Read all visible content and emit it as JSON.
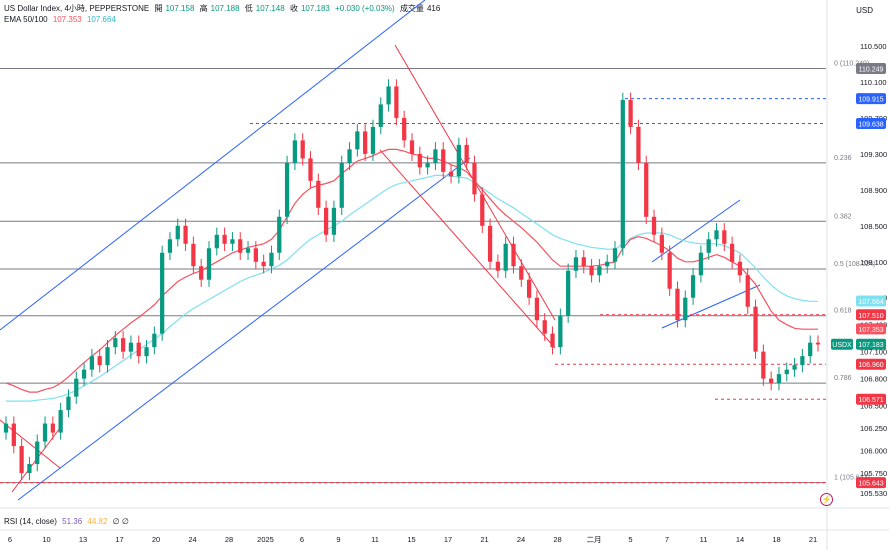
{
  "header": {
    "title": "US Dollar Index, 4小時, PEPPERSTONE",
    "open_label": "開",
    "open": "107.158",
    "high_label": "高",
    "high": "107.188",
    "low_label": "低",
    "low": "107.148",
    "close_label": "收",
    "close": "107.183",
    "change": "+0.030 (+0.03%)",
    "volume_label": "成交量",
    "volume": "416",
    "ema_label": "EMA 50/100",
    "ema50": "107.353",
    "ema100": "107.664"
  },
  "axis": {
    "currency": "USD"
  },
  "rsi": {
    "label": "RSI (14, close)",
    "value1": "51.36",
    "value2": "44.82",
    "extra": "∅ ∅"
  },
  "colors": {
    "up": "#089981",
    "down": "#f23645",
    "channel": "#2962ff",
    "ema50": "#f7525f",
    "ema100": "#7fe0f0",
    "level": "#787b86"
  },
  "chart_data": {
    "type": "candlestick",
    "y_ticks": [
      "110.500",
      "110.100",
      "109.700",
      "109.300",
      "108.900",
      "108.500",
      "108.100",
      "107.700",
      "107.400",
      "107.100",
      "106.800",
      "106.500",
      "106.250",
      "106.000",
      "105.750",
      "105.530"
    ],
    "ylim": [
      105.45,
      110.7
    ],
    "x_ticks": [
      "6",
      "10",
      "13",
      "17",
      "20",
      "24",
      "28",
      "2025",
      "6",
      "9",
      "11",
      "15",
      "17",
      "21",
      "24",
      "28",
      "二月",
      "5",
      "7",
      "11",
      "14",
      "18",
      "21"
    ],
    "fib_levels": [
      {
        "label": "0 (110.249)",
        "value": 110.249
      },
      {
        "label": "0.236",
        "value": 109.2
      },
      {
        "label": "0.382",
        "value": 108.55
      },
      {
        "label": "0.5 (108.024)",
        "value": 108.02
      },
      {
        "label": "0.618",
        "value": 107.5
      },
      {
        "label": "0.786",
        "value": 106.75
      },
      {
        "label": "1 (105.643)",
        "value": 105.643
      }
    ],
    "price_labels": [
      {
        "text": "110.249",
        "value": 110.249,
        "color": "#787b86"
      },
      {
        "text": "109.915",
        "value": 109.915,
        "color": "#2962ff"
      },
      {
        "text": "109.638",
        "value": 109.638,
        "color": "#2962ff"
      },
      {
        "text": "107.664",
        "value": 107.664,
        "color": "#7fe0f0"
      },
      {
        "text": "107.510",
        "value": 107.51,
        "color": "#f23645"
      },
      {
        "text": "107.353",
        "value": 107.353,
        "color": "#f7525f"
      },
      {
        "text": "USDX",
        "value": 107.183,
        "color": "#089981"
      },
      {
        "text": "107.183",
        "value": 107.183,
        "color": "#089981"
      },
      {
        "text": "106.960",
        "value": 106.96,
        "color": "#f23645"
      },
      {
        "text": "106.571",
        "value": 106.571,
        "color": "#f23645"
      },
      {
        "text": "105.643",
        "value": 105.643,
        "color": "#f23645"
      }
    ],
    "close_series": [
      106.3,
      106.05,
      105.75,
      105.85,
      106.1,
      106.3,
      106.2,
      106.45,
      106.6,
      106.8,
      106.9,
      107.05,
      106.95,
      107.15,
      107.25,
      107.1,
      107.2,
      107.05,
      107.15,
      107.3,
      108.2,
      108.35,
      108.5,
      108.3,
      108.05,
      107.9,
      108.25,
      108.4,
      108.3,
      108.35,
      108.2,
      108.25,
      108.1,
      108.05,
      108.2,
      108.6,
      109.2,
      109.45,
      109.25,
      109.0,
      108.7,
      108.4,
      108.7,
      109.2,
      109.35,
      109.55,
      109.3,
      109.6,
      109.85,
      110.05,
      109.7,
      109.45,
      109.3,
      109.15,
      109.2,
      109.35,
      109.1,
      109.05,
      109.4,
      109.2,
      108.85,
      108.5,
      108.1,
      108.0,
      108.3,
      108.05,
      107.9,
      107.7,
      107.45,
      107.3,
      107.15,
      107.5,
      108.0,
      108.15,
      108.05,
      107.95,
      108.05,
      108.1,
      108.25,
      109.9,
      109.6,
      109.2,
      108.6,
      108.4,
      108.2,
      107.8,
      107.45,
      107.7,
      107.95,
      108.2,
      108.35,
      108.45,
      108.3,
      108.1,
      107.95,
      107.6,
      107.1,
      106.8,
      106.75,
      106.85,
      106.9,
      106.95,
      107.05,
      107.2,
      107.18
    ],
    "ema50": [
      106.75,
      106.72,
      106.68,
      106.65,
      106.65,
      106.68,
      106.7,
      106.75,
      106.82,
      106.9,
      106.98,
      107.05,
      107.12,
      107.2,
      107.28,
      107.35,
      107.42,
      107.48,
      107.55,
      107.62,
      107.72,
      107.8,
      107.88,
      107.93,
      107.97,
      108.0,
      108.05,
      108.1,
      108.15,
      108.2,
      108.23,
      108.26,
      108.28,
      108.3,
      108.35,
      108.45,
      108.6,
      108.75,
      108.85,
      108.92,
      108.95,
      108.97,
      109.0,
      109.08,
      109.15,
      109.22,
      109.25,
      109.28,
      109.32,
      109.35,
      109.35,
      109.33,
      109.3,
      109.28,
      109.25,
      109.25,
      109.22,
      109.18,
      109.15,
      109.1,
      109.0,
      108.9,
      108.8,
      108.7,
      108.62,
      108.55,
      108.48,
      108.4,
      108.32,
      108.22,
      108.12,
      108.05,
      108.05,
      108.05,
      108.05,
      108.05,
      108.06,
      108.08,
      108.1,
      108.25,
      108.35,
      108.38,
      108.36,
      108.32,
      108.28,
      108.22,
      108.14,
      108.1,
      108.1,
      108.12,
      108.15,
      108.18,
      108.15,
      108.1,
      108.05,
      107.95,
      107.85,
      107.7,
      107.55,
      107.45,
      107.4,
      107.36,
      107.35,
      107.35,
      107.35
    ],
    "ema100": [
      106.55,
      106.55,
      106.55,
      106.55,
      106.56,
      106.57,
      106.58,
      106.6,
      106.63,
      106.67,
      106.72,
      106.77,
      106.82,
      106.88,
      106.94,
      107.0,
      107.06,
      107.12,
      107.18,
      107.24,
      107.3,
      107.38,
      107.45,
      107.52,
      107.58,
      107.63,
      107.68,
      107.73,
      107.78,
      107.83,
      107.88,
      107.92,
      107.95,
      107.98,
      108.02,
      108.06,
      108.12,
      108.2,
      108.28,
      108.35,
      108.4,
      108.45,
      108.5,
      108.55,
      108.62,
      108.68,
      108.74,
      108.8,
      108.86,
      108.92,
      108.96,
      108.98,
      109.0,
      109.02,
      109.04,
      109.06,
      109.06,
      109.05,
      109.04,
      109.03,
      108.98,
      108.92,
      108.86,
      108.8,
      108.75,
      108.7,
      108.64,
      108.58,
      108.52,
      108.46,
      108.4,
      108.36,
      108.33,
      108.3,
      108.28,
      108.26,
      108.25,
      108.24,
      108.24,
      108.3,
      108.36,
      108.4,
      108.42,
      108.42,
      108.42,
      108.4,
      108.36,
      108.33,
      108.31,
      108.3,
      108.3,
      108.3,
      108.28,
      108.24,
      108.2,
      108.12,
      108.03,
      107.93,
      107.84,
      107.77,
      107.72,
      107.69,
      107.67,
      107.66,
      107.66
    ]
  }
}
